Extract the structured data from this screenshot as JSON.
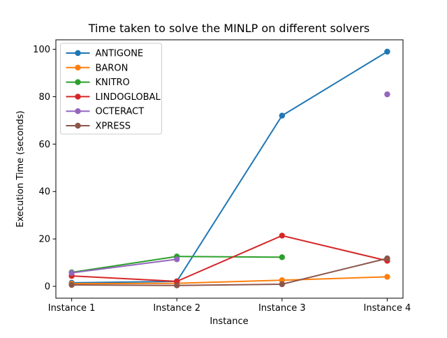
{
  "figure": {
    "background": "#ffffff",
    "spine_color": "#000000"
  },
  "chart_data": {
    "type": "line",
    "title": "Time taken to solve the MINLP on different solvers",
    "xlabel": "Instance",
    "ylabel": "Execution Time (seconds)",
    "categories": [
      "Instance 1",
      "Instance 2",
      "Instance 3",
      "Instance 4"
    ],
    "series": [
      {
        "name": "ANTIGONE",
        "color": "#1f77b4",
        "values": [
          1.5,
          2.1,
          72.0,
          99.0
        ]
      },
      {
        "name": "BARON",
        "color": "#ff7f0e",
        "values": [
          1.1,
          1.3,
          2.6,
          4.0
        ]
      },
      {
        "name": "KNITRO",
        "color": "#2ca02c",
        "values": [
          5.9,
          12.6,
          12.3,
          null
        ]
      },
      {
        "name": "LINDOGLOBAL",
        "color": "#d62728",
        "values": [
          4.4,
          2.1,
          21.4,
          10.8
        ]
      },
      {
        "name": "OCTERACT",
        "color": "#9467bd",
        "values": [
          5.7,
          11.4,
          null,
          81.0
        ]
      },
      {
        "name": "XPRESS",
        "color": "#8c564b",
        "values": [
          0.6,
          0.4,
          0.9,
          11.8
        ]
      }
    ],
    "yticks": [
      0,
      20,
      40,
      60,
      80,
      100
    ],
    "ylim": [
      -5,
      104
    ],
    "xlim": [
      -0.15,
      3.15
    ],
    "grid": false,
    "marker": "o",
    "legend_position": "upper left"
  }
}
